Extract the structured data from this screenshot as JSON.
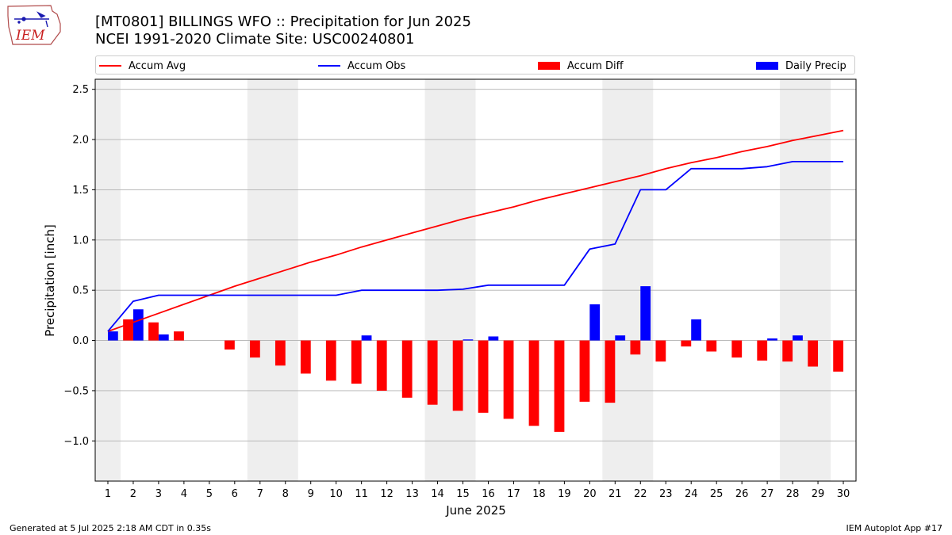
{
  "header": {
    "title_line1": "[MT0801] BILLINGS WFO :: Precipitation for Jun 2025",
    "title_line2": "NCEI 1991-2020 Climate Site: USC00240801"
  },
  "logo": {
    "text": "IEM",
    "icon": "iem-iowa-logo"
  },
  "footer": {
    "left": "Generated at 5 Jul 2025 2:18 AM CDT in 0.35s",
    "right": "IEM Autoplot App #17"
  },
  "legend": {
    "accum_avg": "Accum Avg",
    "accum_obs": "Accum Obs",
    "accum_diff": "Accum Diff",
    "daily_precip": "Daily Precip"
  },
  "colors": {
    "accum_avg": "#ff0000",
    "accum_obs": "#0000ff",
    "accum_diff": "#ff0000",
    "daily_precip": "#0000ff",
    "weekend_shade": "#eeeeee",
    "grid": "#b0b0b0"
  },
  "chart_data": {
    "type": "bar",
    "xlabel": "June 2025",
    "ylabel": "Precipitation [inch]",
    "ylim": [
      -1.4,
      2.6
    ],
    "yticks": [
      -1.0,
      -0.5,
      0.0,
      0.5,
      1.0,
      1.5,
      2.0,
      2.5
    ],
    "ytick_labels": [
      "−1.0",
      "−0.5",
      "0.0",
      "0.5",
      "1.0",
      "1.5",
      "2.0",
      "2.5"
    ],
    "xlim": [
      0.5,
      30.5
    ],
    "grid": "horizontal",
    "weekend_shading": [
      [
        0.5,
        1.5
      ],
      [
        6.5,
        8.5
      ],
      [
        13.5,
        15.5
      ],
      [
        20.5,
        22.5
      ],
      [
        27.5,
        29.5
      ]
    ],
    "x": [
      1,
      2,
      3,
      4,
      5,
      6,
      7,
      8,
      9,
      10,
      11,
      12,
      13,
      14,
      15,
      16,
      17,
      18,
      19,
      20,
      21,
      22,
      23,
      24,
      25,
      26,
      27,
      28,
      29,
      30
    ],
    "series": [
      {
        "name": "Accum Avg",
        "kind": "line",
        "values": [
          0.09,
          0.18,
          0.27,
          0.36,
          0.45,
          0.54,
          0.62,
          0.7,
          0.78,
          0.85,
          0.93,
          1.0,
          1.07,
          1.14,
          1.21,
          1.27,
          1.33,
          1.4,
          1.46,
          1.52,
          1.58,
          1.64,
          1.71,
          1.77,
          1.82,
          1.88,
          1.93,
          1.99,
          2.04,
          2.09
        ]
      },
      {
        "name": "Accum Obs",
        "kind": "line",
        "values": [
          0.09,
          0.39,
          0.45,
          0.45,
          0.45,
          0.45,
          0.45,
          0.45,
          0.45,
          0.45,
          0.5,
          0.5,
          0.5,
          0.5,
          0.51,
          0.55,
          0.55,
          0.55,
          0.55,
          0.91,
          0.96,
          1.5,
          1.5,
          1.71,
          1.71,
          1.71,
          1.73,
          1.78,
          1.78,
          1.78
        ]
      },
      {
        "name": "Accum Diff",
        "kind": "bar",
        "values": [
          0.0,
          0.21,
          0.18,
          0.09,
          0.0,
          -0.09,
          -0.17,
          -0.25,
          -0.33,
          -0.4,
          -0.43,
          -0.5,
          -0.57,
          -0.64,
          -0.7,
          -0.72,
          -0.78,
          -0.85,
          -0.91,
          -0.61,
          -0.62,
          -0.14,
          -0.21,
          -0.06,
          -0.11,
          -0.17,
          -0.2,
          -0.21,
          -0.26,
          -0.31
        ]
      },
      {
        "name": "Daily Precip",
        "kind": "bar",
        "values": [
          0.09,
          0.31,
          0.06,
          0.0,
          0.0,
          0.0,
          0.0,
          0.0,
          0.0,
          0.0,
          0.05,
          0.0,
          0.0,
          0.0,
          0.01,
          0.04,
          0.0,
          0.0,
          0.0,
          0.36,
          0.05,
          0.54,
          0.0,
          0.21,
          0.0,
          0.0,
          0.02,
          0.05,
          0.0,
          0.0
        ]
      }
    ]
  }
}
